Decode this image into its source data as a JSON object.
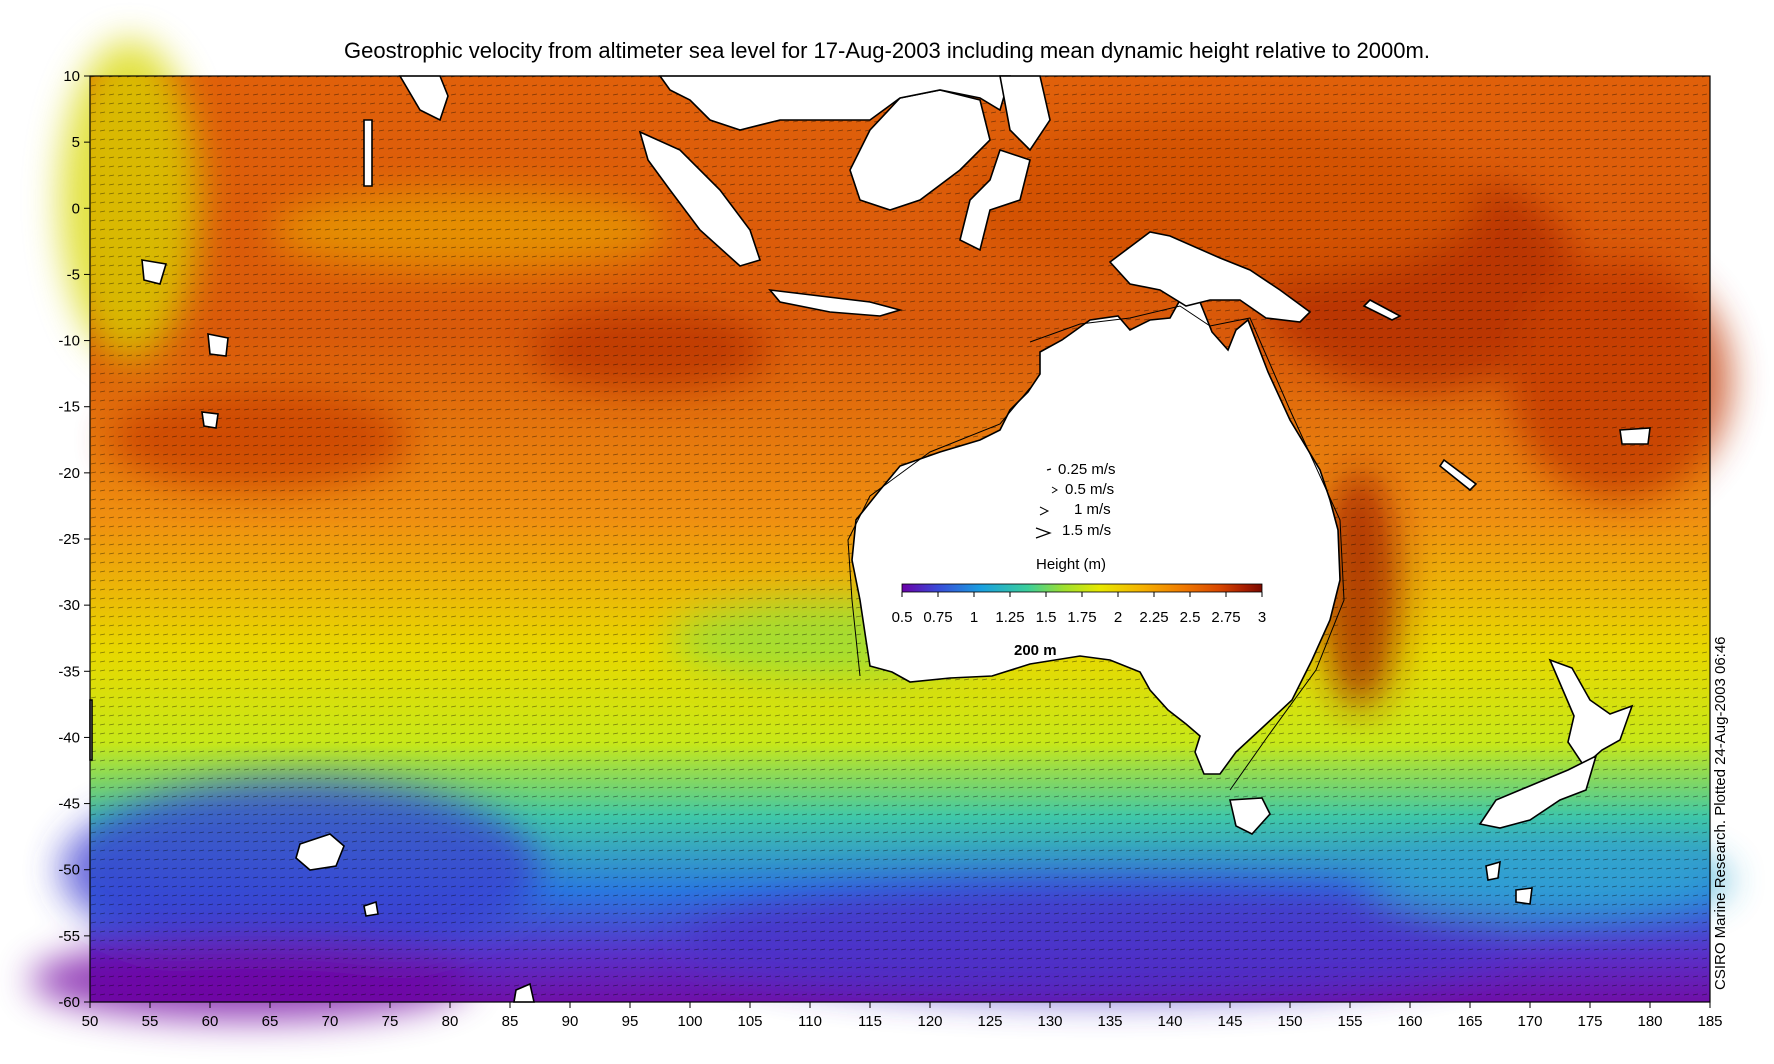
{
  "title": "Geostrophic velocity from altimeter sea level for 17-Aug-2003 including mean dynamic height relative to 2000m.",
  "credit": "CSIRO Marine Research. Plotted 24-Aug-2003 06:46",
  "axes": {
    "x_ticks": [
      "50",
      "55",
      "60",
      "65",
      "70",
      "75",
      "80",
      "85",
      "90",
      "95",
      "100",
      "105",
      "110",
      "115",
      "120",
      "125",
      "130",
      "135",
      "140",
      "145",
      "150",
      "155",
      "160",
      "165",
      "170",
      "175",
      "180",
      "185"
    ],
    "y_ticks": [
      "10",
      "5",
      "0",
      "-5",
      "-10",
      "-15",
      "-20",
      "-25",
      "-30",
      "-35",
      "-40",
      "-45",
      "-50",
      "-55",
      "-60"
    ],
    "x_range": [
      50,
      185
    ],
    "y_range": [
      -60,
      10
    ]
  },
  "legend": {
    "speed_labels": [
      "0.25 m/s",
      "0.5 m/s",
      "1 m/s",
      "1.5 m/s"
    ],
    "colorbar_title": "Height (m)",
    "colorbar_ticks": [
      "0.5",
      "0.75",
      "1",
      "1.25",
      "1.5",
      "1.75",
      "2",
      "2.25",
      "2.5",
      "2.75",
      "3"
    ],
    "colorbar_range": [
      0.5,
      3.0
    ],
    "colors": [
      "#6a00a8",
      "#3a4bd8",
      "#1aa0e0",
      "#3ccf9a",
      "#9fe030",
      "#e8e800",
      "#f5b000",
      "#f07a00",
      "#d94800",
      "#a81e00",
      "#7a0a00"
    ]
  },
  "annotations": {
    "isobath_label": "200 m"
  }
}
